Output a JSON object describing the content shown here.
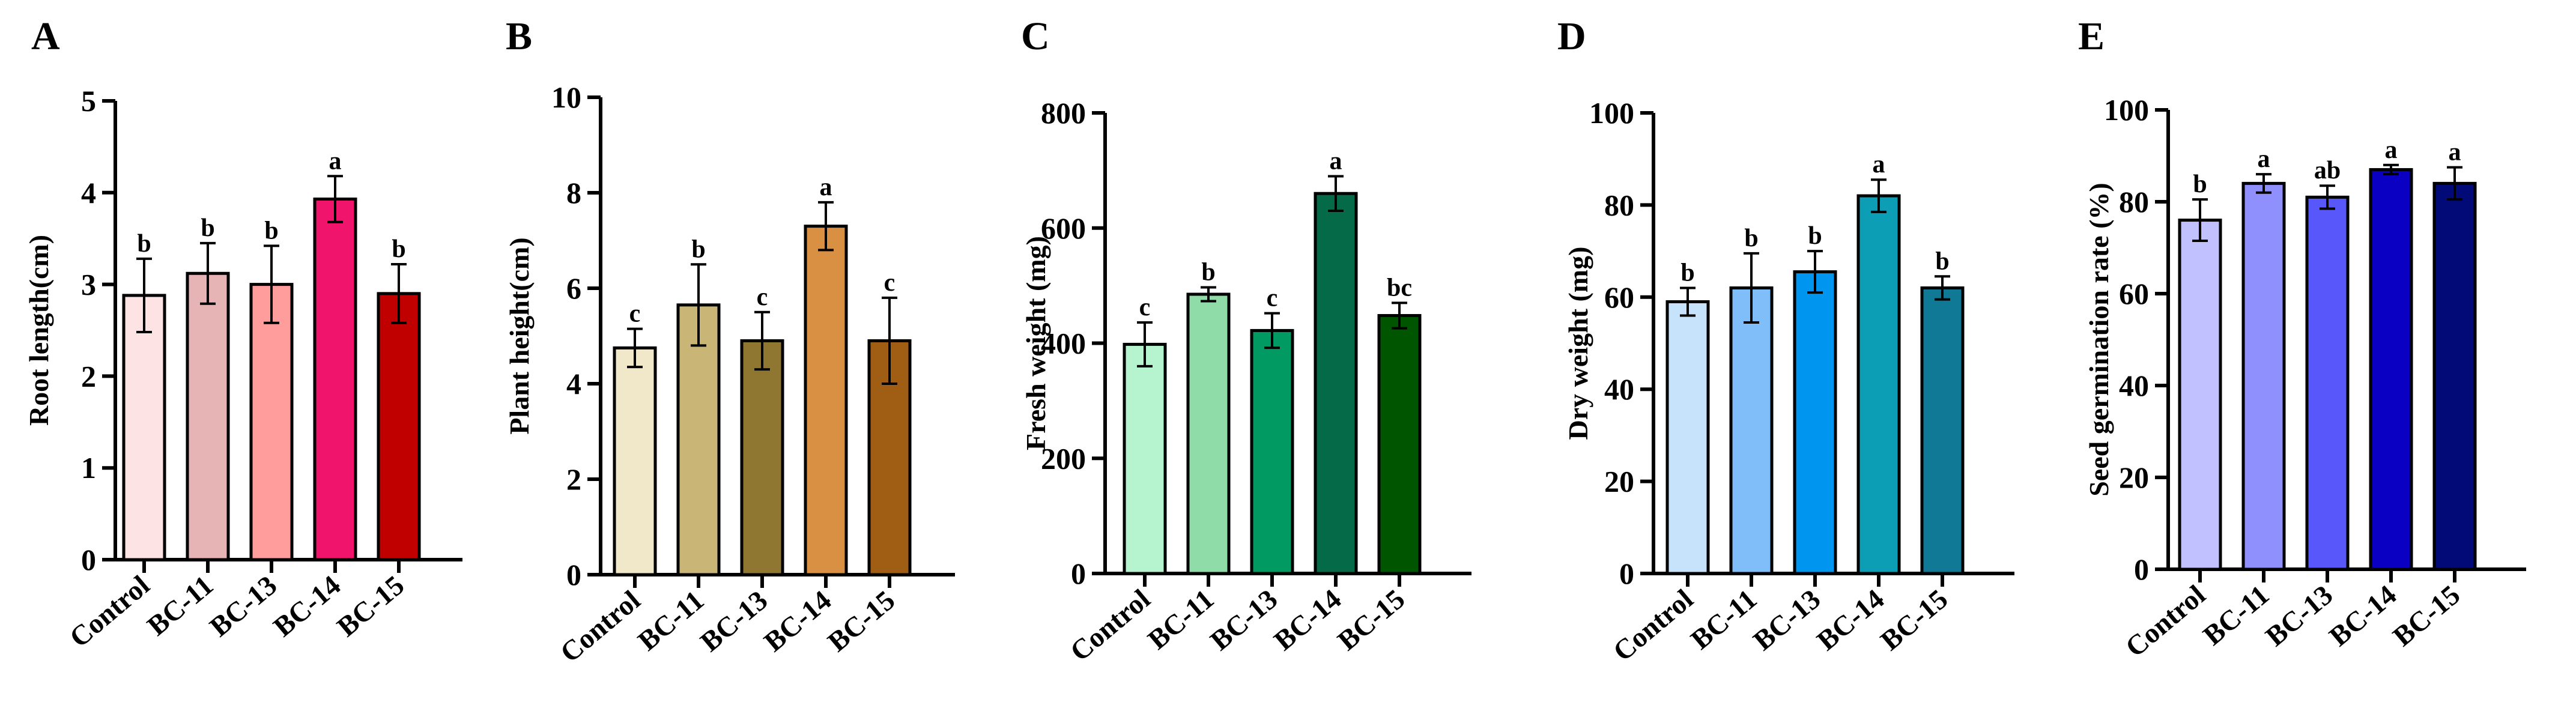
{
  "chart_data": [
    {
      "type": "bar",
      "panel": "A",
      "ylabel": "Root length(cm)",
      "ylim": [
        0,
        5
      ],
      "yticks": [
        0,
        1,
        2,
        3,
        4,
        5
      ],
      "categories": [
        "Control",
        "BC-11",
        "BC-13",
        "BC-14",
        "BC-15"
      ],
      "values": [
        2.88,
        3.12,
        3.0,
        3.93,
        2.9
      ],
      "errors": [
        0.4,
        0.33,
        0.42,
        0.25,
        0.32
      ],
      "significance": [
        "b",
        "b",
        "b",
        "a",
        "b"
      ],
      "colors": [
        "#fde3e3",
        "#e6b4b4",
        "#ff9c9c",
        "#f0146c",
        "#c00000"
      ]
    },
    {
      "type": "bar",
      "panel": "B",
      "ylabel": "Plant height(cm)",
      "ylim": [
        0,
        10
      ],
      "yticks": [
        0,
        2,
        4,
        6,
        8,
        10
      ],
      "categories": [
        "Control",
        "BC-11",
        "BC-13",
        "BC-14",
        "BC-15"
      ],
      "values": [
        4.75,
        5.65,
        4.9,
        7.3,
        4.9
      ],
      "errors": [
        0.4,
        0.85,
        0.6,
        0.5,
        0.9
      ],
      "significance": [
        "c",
        "b",
        "c",
        "a",
        "c"
      ],
      "colors": [
        "#f1e8c9",
        "#c9b677",
        "#8f7732",
        "#d99042",
        "#a05e14"
      ]
    },
    {
      "type": "bar",
      "panel": "C",
      "ylabel": "Fresh weight (mg)",
      "ylim": [
        0,
        800
      ],
      "yticks": [
        0,
        200,
        400,
        600,
        800
      ],
      "categories": [
        "Control",
        "BC-11",
        "BC-13",
        "BC-14",
        "BC-15"
      ],
      "values": [
        398,
        485,
        422,
        660,
        448
      ],
      "errors": [
        38,
        12,
        30,
        30,
        22
      ],
      "significance": [
        "c",
        "b",
        "c",
        "a",
        "bc"
      ],
      "colors": [
        "#b6f4cf",
        "#90dca8",
        "#009a62",
        "#046a48",
        "#005600"
      ]
    },
    {
      "type": "bar",
      "panel": "D",
      "ylabel": "Dry weight (mg)",
      "ylim": [
        0,
        100
      ],
      "yticks": [
        0,
        20,
        40,
        60,
        80,
        100
      ],
      "categories": [
        "Control",
        "BC-11",
        "BC-13",
        "BC-14",
        "BC-15"
      ],
      "values": [
        59,
        62,
        65.5,
        82,
        62
      ],
      "errors": [
        3,
        7.5,
        4.5,
        3.5,
        2.5
      ],
      "significance": [
        "b",
        "b",
        "b",
        "a",
        "b"
      ],
      "colors": [
        "#c7e3fb",
        "#7fbef8",
        "#0096f0",
        "#0b9eb4",
        "#0f7996"
      ]
    },
    {
      "type": "bar",
      "panel": "E",
      "ylabel": "Seed germination rate (%)",
      "ylim": [
        0,
        100
      ],
      "yticks": [
        0,
        20,
        40,
        60,
        80,
        100
      ],
      "categories": [
        "Control",
        "BC-11",
        "BC-13",
        "BC-14",
        "BC-15"
      ],
      "values": [
        76,
        84,
        81,
        87,
        84
      ],
      "errors": [
        4.5,
        2,
        2.5,
        1,
        3.5
      ],
      "significance": [
        "b",
        "a",
        "ab",
        "a",
        "a"
      ],
      "colors": [
        "#c1c1ff",
        "#8f8ffd",
        "#5858fa",
        "#0a00c4",
        "#020a78"
      ]
    }
  ]
}
